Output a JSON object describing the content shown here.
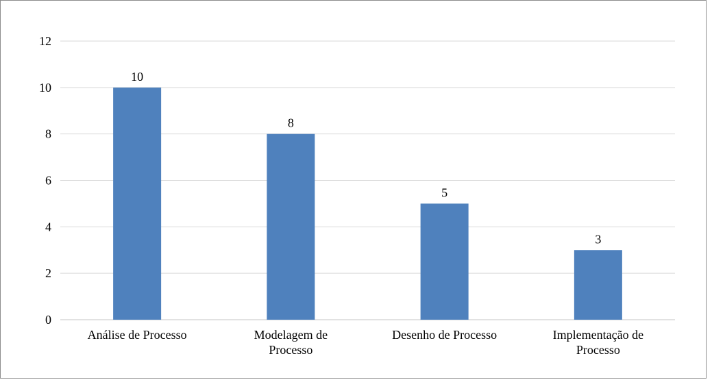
{
  "chart_data": {
    "type": "bar",
    "categories": [
      [
        "Análise de Processo"
      ],
      [
        "Modelagem de",
        "Processo"
      ],
      [
        "Desenho de Processo"
      ],
      [
        "Implementação de",
        "Processo"
      ]
    ],
    "values": [
      10,
      8,
      5,
      3
    ],
    "data_labels": [
      "10",
      "8",
      "5",
      "3"
    ],
    "y_ticks": [
      0,
      2,
      4,
      6,
      8,
      10,
      12
    ],
    "ylim": [
      0,
      12
    ],
    "grid": true,
    "legend": "none",
    "bar_color": "#4f81bd",
    "grid_color": "#d9d9d9",
    "axis_color": "#d9d9d9"
  }
}
